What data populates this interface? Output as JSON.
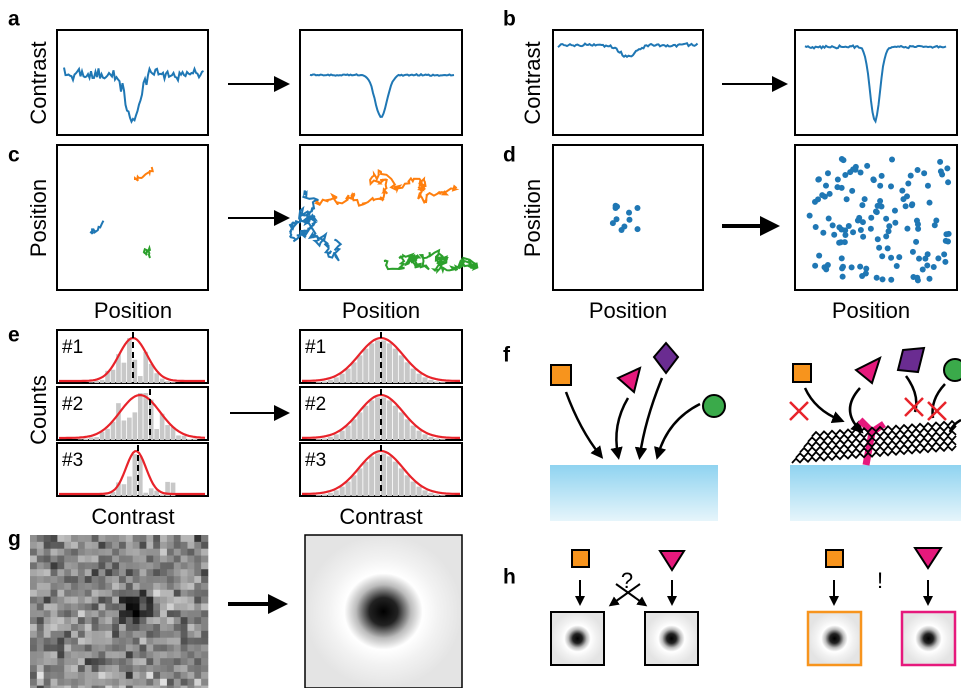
{
  "panels": {
    "a": {
      "label": "a",
      "y_label": "Contrast"
    },
    "b": {
      "label": "b",
      "y_label": "Contrast"
    },
    "c": {
      "label": "c",
      "y_label": "Position",
      "x_label_left": "Position",
      "x_label_right": "Position"
    },
    "d": {
      "label": "d",
      "y_label": "Position",
      "x_label_left": "Position",
      "x_label_right": "Position"
    },
    "e": {
      "label": "e",
      "y_label": "Counts",
      "rows_left": [
        "#1",
        "#2",
        "#3"
      ],
      "rows_right": [
        "#1",
        "#2",
        "#3"
      ],
      "x_label_left": "Contrast",
      "x_label_right": "Contrast"
    },
    "f": {
      "label": "f"
    },
    "g": {
      "label": "g"
    },
    "h": {
      "label": "h",
      "question": "?",
      "exclaim": "!"
    }
  }
}
